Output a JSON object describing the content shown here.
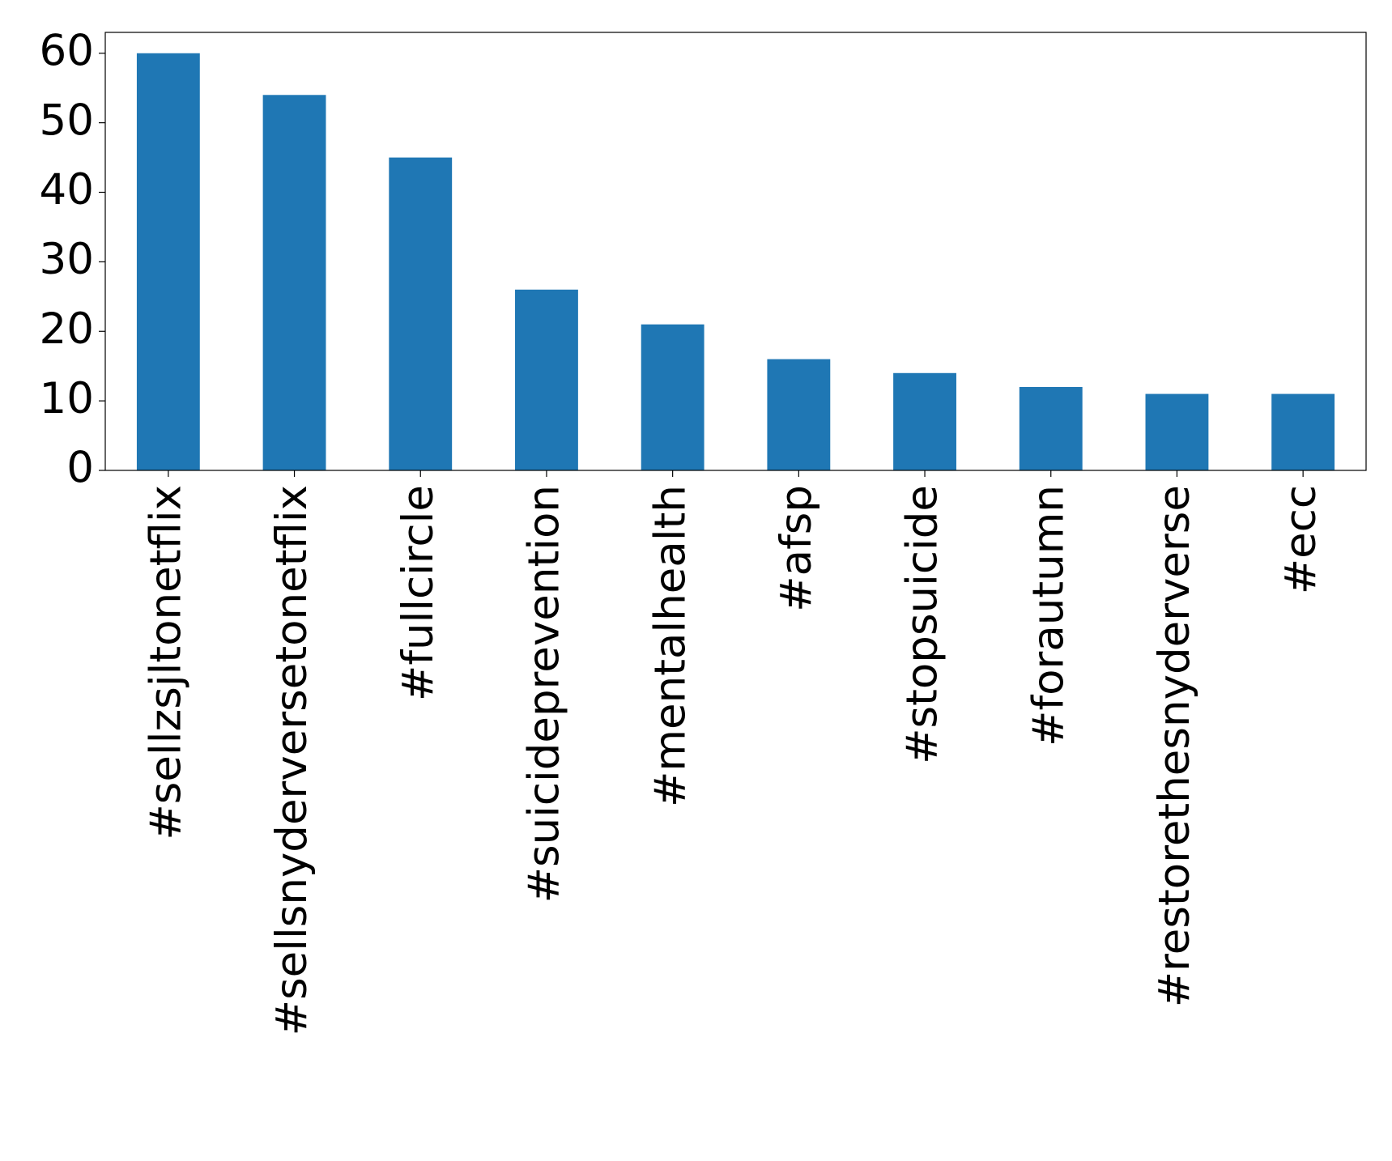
{
  "chart_data": {
    "type": "bar",
    "categories": [
      "#sellzsjltonetflix",
      "#sellsnyderversetonetflix",
      "#fullcircle",
      "#suicideprevention",
      "#mentalhealth",
      "#afsp",
      "#stopsuicide",
      "#forautumn",
      "#restorethesnyderverse",
      "#ecc"
    ],
    "values": [
      60,
      54,
      45,
      26,
      21,
      16,
      14,
      12,
      11,
      11
    ],
    "color": "#1f77b4",
    "ylim": [
      0,
      63
    ],
    "yticks": [
      0,
      10,
      20,
      30,
      40,
      50,
      60
    ],
    "grid": false
  }
}
